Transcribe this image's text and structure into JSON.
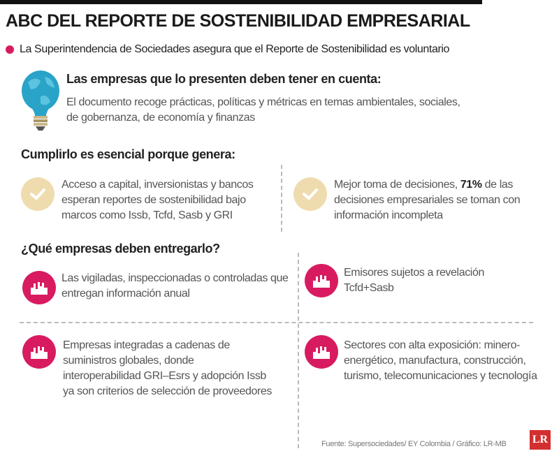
{
  "title": "ABC DEL REPORTE DE SOSTENIBILIDAD EMPRESARIAL",
  "subtitle": "La Superintendencia de Sociedades asegura que el Reporte de Sostenibilidad es voluntario",
  "intro": {
    "heading": "Las empresas que lo presenten deben tener en cuenta:",
    "text": "El documento recoge prácticas, políticas y métricas en temas ambientales, sociales, de gobernanza, de economía y finanzas"
  },
  "benefits": {
    "heading": "Cumplirlo es esencial porque genera:",
    "items": [
      {
        "text": "Acceso a capital, inversionistas y bancos esperan reportes de sostenibilidad bajo marcos como Issb, Tcfd, Sasb y GRI"
      },
      {
        "text_before": "Mejor toma de decisiones, ",
        "highlight": "71%",
        "text_after": " de las decisiones empresariales se toman con información incompleta"
      }
    ]
  },
  "companies": {
    "heading": "¿Qué empresas deben entregarlo?",
    "items": [
      {
        "text": "Las vigiladas, inspeccionadas o controladas que entregan información anual"
      },
      {
        "text": "Emisores sujetos a revelación Tcfd+Sasb"
      },
      {
        "text": "Empresas integradas a cadenas de suministros globales, donde interoperabilidad GRI–Esrs y adopción Issb ya son criterios de selección de proveedores"
      },
      {
        "text": "Sectores con alta exposición: minero-energético, manufactura, construcción, turismo, telecomunicaciones y tecnología"
      }
    ]
  },
  "source": "Fuente: Supersociedades/ EY Colombia / Gráfico: LR-MB",
  "logo": "LR",
  "colors": {
    "accent": "#d81b60",
    "check_bg": "#efdcae",
    "bulb": "#2aa3c8",
    "logo": "#d32f2f"
  }
}
